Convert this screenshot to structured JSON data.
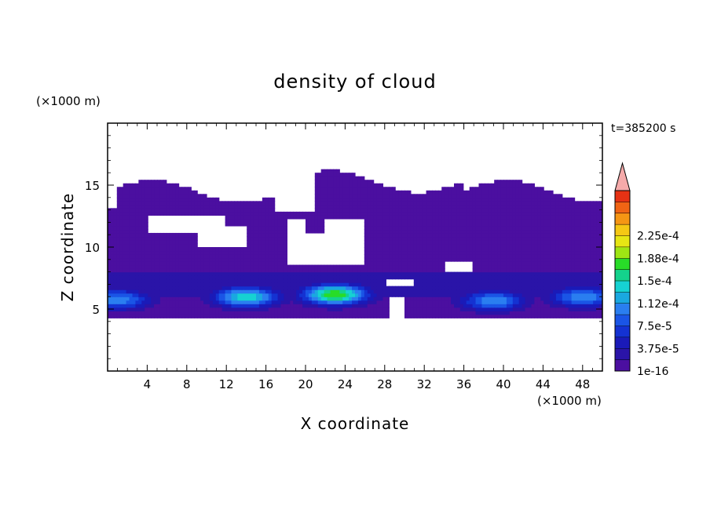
{
  "chart_data": {
    "type": "heatmap",
    "title": "density of cloud",
    "xlabel": "X coordinate",
    "ylabel": "Z coordinate",
    "x_unit": "(×1000 m)",
    "y_unit": "(×1000 m)",
    "time_label": "t=385200 s",
    "xlim": [
      0,
      50
    ],
    "ylim": [
      0,
      20
    ],
    "x_ticks": [
      4,
      8,
      12,
      16,
      20,
      24,
      28,
      32,
      36,
      40,
      44,
      48
    ],
    "y_ticks": [
      5,
      10,
      15
    ],
    "colorbar": {
      "labels": [
        "1e-16",
        "3.75e-5",
        "7.5e-5",
        "1.12e-4",
        "1.5e-4",
        "1.88e-4",
        "2.25e-4"
      ],
      "colors": [
        "#4b0fa0",
        "#2a14a8",
        "#1a1ab8",
        "#1432d2",
        "#1a55e6",
        "#2a7ef0",
        "#1aa8e0",
        "#16d2d2",
        "#14d28c",
        "#28dc28",
        "#9ee614",
        "#e6e614",
        "#f5c814",
        "#f59614",
        "#f06414",
        "#e63214"
      ],
      "extend_color": "#f5aaaa"
    },
    "cloud_layers": {
      "anvil_base_z": 7.5,
      "anvil_top_z": 14.5,
      "low_base_z": 4.3,
      "cores": [
        {
          "x": 1,
          "z": 5.8,
          "peak": 0.000112
        },
        {
          "x": 14,
          "z": 6.0,
          "peak": 0.00015
        },
        {
          "x": 23,
          "z": 6.2,
          "peak": 0.000188
        },
        {
          "x": 39,
          "z": 5.7,
          "peak": 0.000112
        },
        {
          "x": 48,
          "z": 6.0,
          "peak": 0.000112
        }
      ]
    }
  }
}
